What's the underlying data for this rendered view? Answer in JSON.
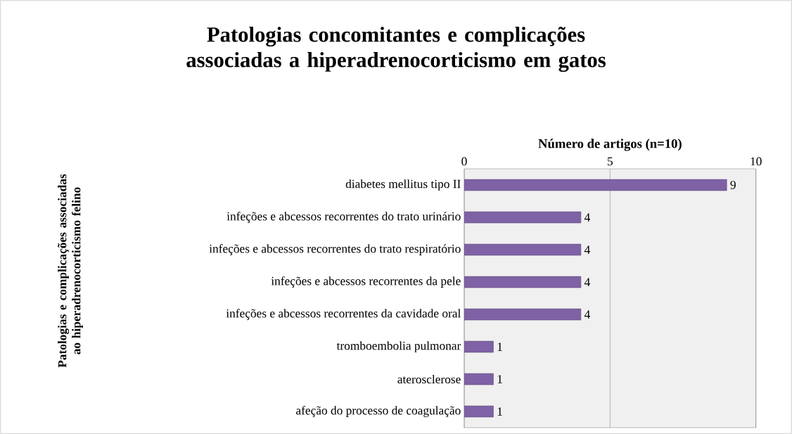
{
  "chart_data": {
    "type": "bar",
    "orientation": "horizontal",
    "title": "Patologias concomitantes e complicações associadas a hiperadrenocorticismo em gatos",
    "xlabel": "Número de artigos (n=10)",
    "annotations": [
      "Patologias e complicações associadas ao hiperadrenocorticismo felino"
    ],
    "categories": [
      "diabetes mellitus tipo II",
      "infeções e abcessos  recorrentes do trato urinário",
      "infeções e abcessos recorrentes do trato respiratório",
      "infeções e abcessos recorrentes da pele",
      "infeções e abcessos recorrentes da cavidade oral",
      "tromboembolia pulmonar",
      "aterosclerose",
      "afeção do processo de coagulação"
    ],
    "values": [
      9,
      4,
      4,
      4,
      4,
      1,
      1,
      1
    ],
    "color": "#7f62a6",
    "xlim": [
      0,
      10
    ],
    "xticks": [
      0,
      5,
      10
    ],
    "grid": "x",
    "data_labels": true
  }
}
